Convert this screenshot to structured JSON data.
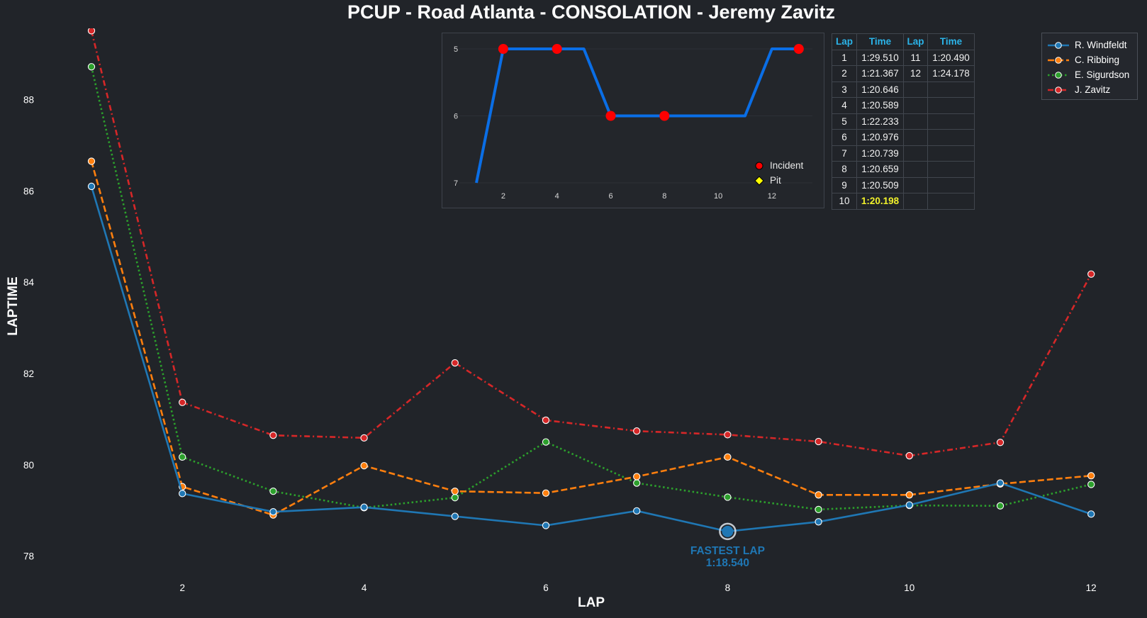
{
  "title": "PCUP - Road Atlanta - CONSOLATION - Jeremy Zavitz",
  "colors": {
    "background": "#212429",
    "windfeldt": "#1f77b4",
    "ribbing": "#ff7f0e",
    "sigurdson": "#2ca02c",
    "zavitz": "#d62728",
    "inset_line": "#0a6ee6",
    "incident": "#ff0000",
    "pit": "#ffff00",
    "table_header": "#2bb3e8",
    "fastest_highlight": "#f2f22a"
  },
  "chart_data": [
    {
      "type": "line",
      "title": "PCUP - Road Atlanta - CONSOLATION - Jeremy Zavitz",
      "xlabel": "LAP",
      "ylabel": "LAPTIME",
      "x": [
        1,
        2,
        3,
        4,
        5,
        6,
        7,
        8,
        9,
        10,
        11,
        12
      ],
      "xticks": [
        2,
        4,
        6,
        8,
        10,
        12
      ],
      "yticks": [
        78,
        80,
        82,
        84,
        86,
        88
      ],
      "xlim": [
        0.5,
        12.5
      ],
      "ylim": [
        77.4,
        89.6
      ],
      "grid": false,
      "legend_position": "top-right",
      "series": [
        {
          "name": "R. Windfeldt",
          "style": "solid",
          "color": "#1f77b4",
          "values": [
            86.1,
            79.37,
            78.97,
            79.07,
            78.87,
            78.67,
            78.99,
            78.54,
            78.75,
            79.12,
            79.6,
            78.92
          ]
        },
        {
          "name": "C. Ribbing",
          "style": "dashed",
          "color": "#ff7f0e",
          "values": [
            86.65,
            79.52,
            78.9,
            79.98,
            79.42,
            79.38,
            79.74,
            80.17,
            79.34,
            79.34,
            79.58,
            79.76
          ]
        },
        {
          "name": "E. Sigurdson",
          "style": "dotted",
          "color": "#2ca02c",
          "values": [
            88.72,
            80.17,
            79.42,
            79.06,
            79.28,
            80.5,
            79.6,
            79.29,
            79.02,
            79.11,
            79.1,
            79.57
          ]
        },
        {
          "name": "J. Zavitz",
          "style": "dashdot",
          "color": "#d62728",
          "values": [
            89.51,
            81.367,
            80.646,
            80.589,
            82.233,
            80.976,
            80.739,
            80.659,
            80.509,
            80.198,
            80.49,
            84.178
          ]
        }
      ],
      "annotation": {
        "label": "FASTEST LAP",
        "value": "1:18.540",
        "x": 8,
        "y": 78.54
      }
    },
    {
      "type": "line",
      "x": [
        1,
        2,
        3,
        4,
        5,
        6,
        7,
        8,
        9,
        10,
        11,
        12,
        13
      ],
      "values": [
        7,
        5,
        5,
        5,
        5,
        6,
        6,
        6,
        6,
        6,
        6,
        5,
        5
      ],
      "xticks": [
        2,
        4,
        6,
        8,
        10,
        12
      ],
      "yticks": [
        5,
        6,
        7
      ],
      "ylim_inverted": [
        7.05,
        4.95
      ],
      "incident_laps": [
        2,
        4,
        6,
        8,
        13
      ],
      "legend": [
        "Incident",
        "Pit"
      ]
    }
  ],
  "table": {
    "headers": [
      "Lap",
      "Time",
      "Lap",
      "Time"
    ],
    "rows": [
      {
        "lap1": "1",
        "time1": "1:29.510",
        "lap2": "11",
        "time2": "1:20.490"
      },
      {
        "lap1": "2",
        "time1": "1:21.367",
        "lap2": "12",
        "time2": "1:24.178"
      },
      {
        "lap1": "3",
        "time1": "1:20.646",
        "lap2": "",
        "time2": ""
      },
      {
        "lap1": "4",
        "time1": "1:20.589",
        "lap2": "",
        "time2": ""
      },
      {
        "lap1": "5",
        "time1": "1:22.233",
        "lap2": "",
        "time2": ""
      },
      {
        "lap1": "6",
        "time1": "1:20.976",
        "lap2": "",
        "time2": ""
      },
      {
        "lap1": "7",
        "time1": "1:20.739",
        "lap2": "",
        "time2": ""
      },
      {
        "lap1": "8",
        "time1": "1:20.659",
        "lap2": "",
        "time2": ""
      },
      {
        "lap1": "9",
        "time1": "1:20.509",
        "lap2": "",
        "time2": ""
      },
      {
        "lap1": "10",
        "time1": "1:20.198",
        "lap2": "",
        "time2": "",
        "fastest": true
      }
    ]
  }
}
